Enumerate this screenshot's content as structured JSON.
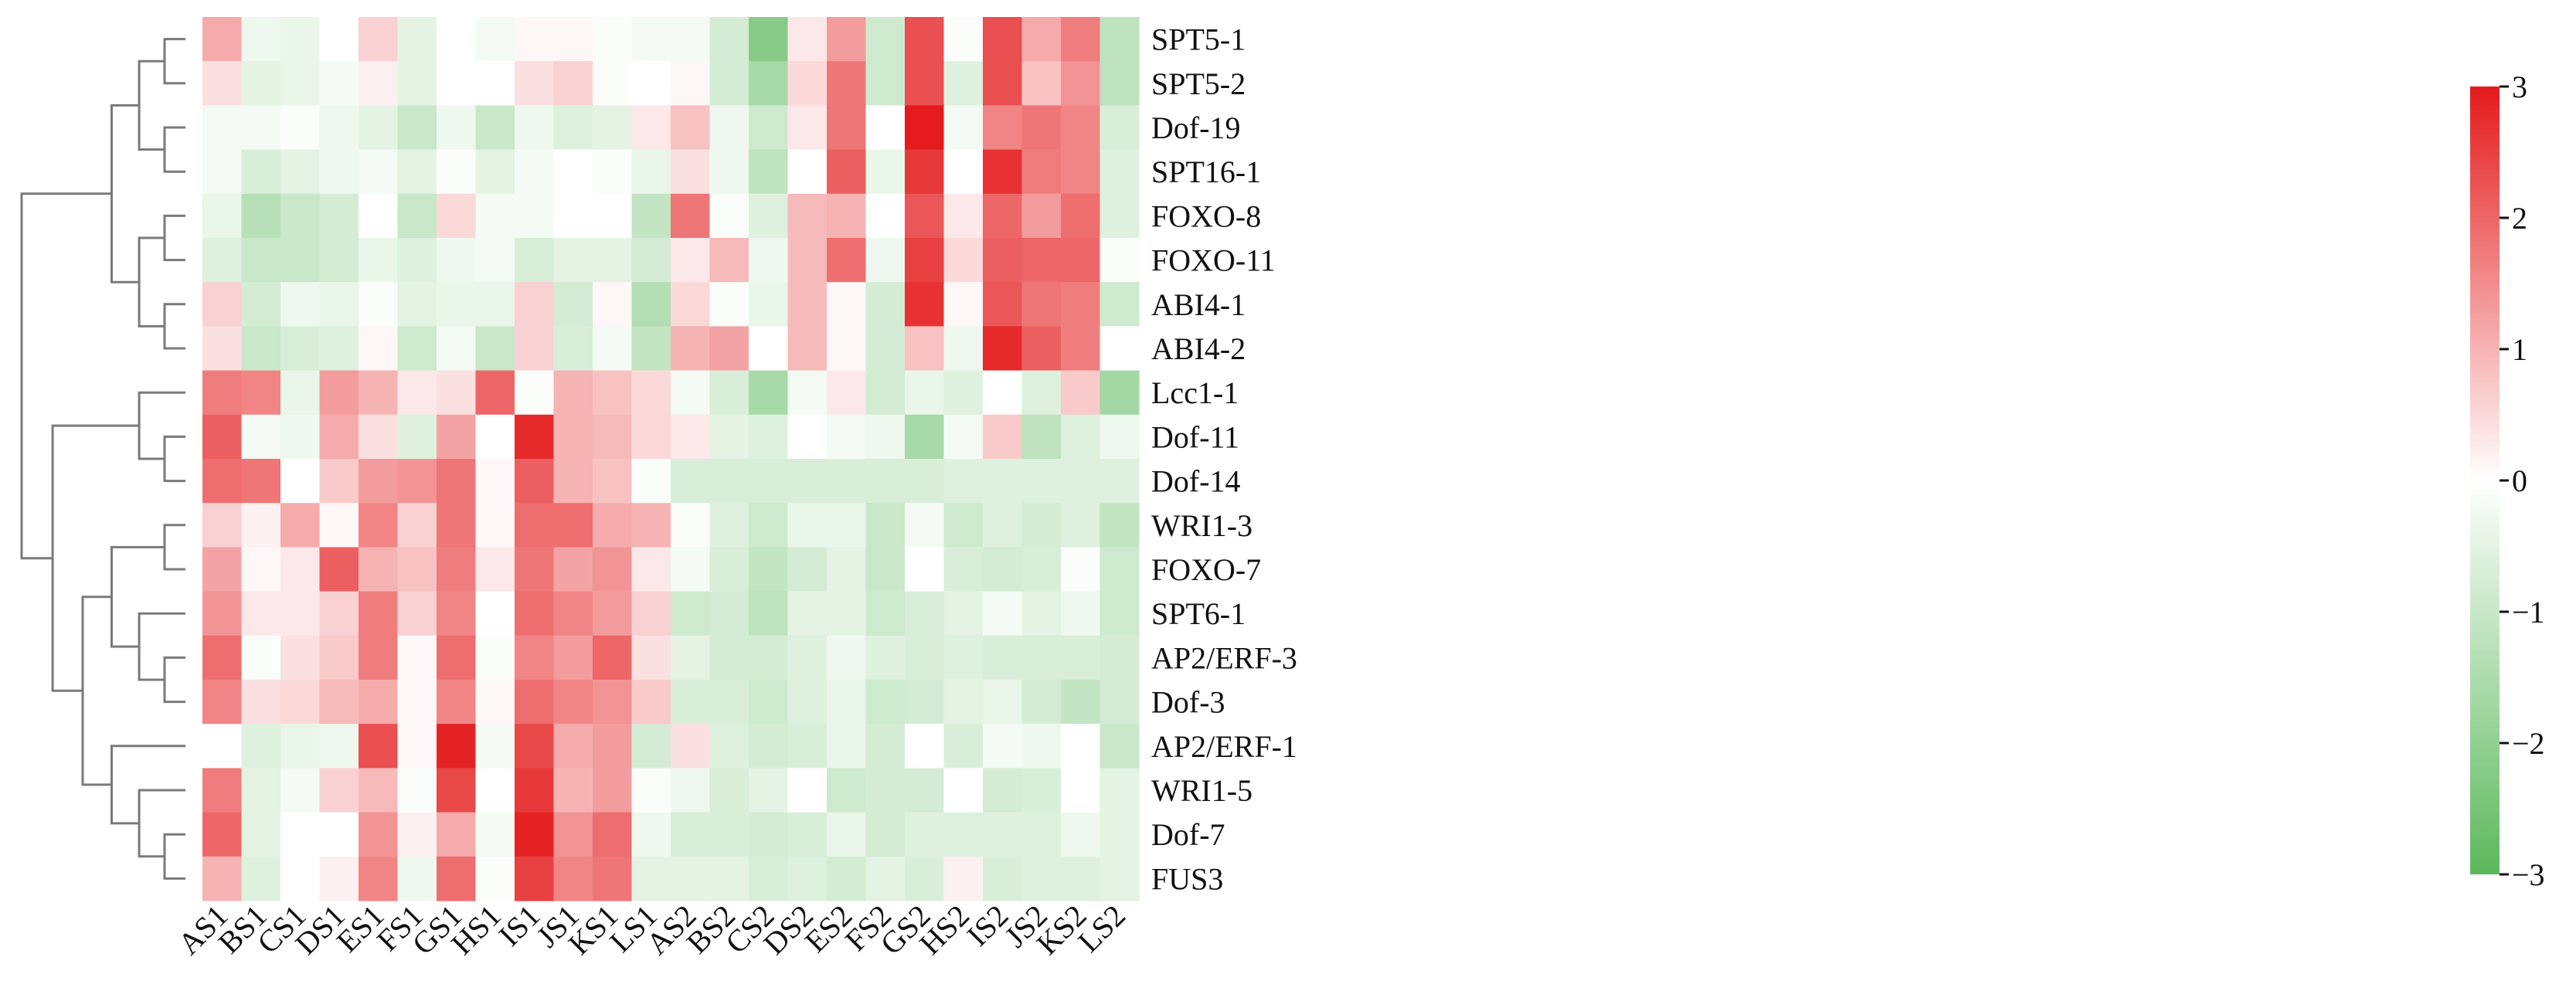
{
  "chart_data": {
    "type": "heatmap",
    "title": "",
    "xlabel": "",
    "ylabel": "",
    "columns": [
      "AS1",
      "BS1",
      "CS1",
      "DS1",
      "ES1",
      "FS1",
      "GS1",
      "HS1",
      "IS1",
      "JS1",
      "KS1",
      "LS1",
      "AS2",
      "BS2",
      "CS2",
      "DS2",
      "ES2",
      "FS2",
      "GS2",
      "HS2",
      "IS2",
      "JS2",
      "KS2",
      "LS2"
    ],
    "rows": [
      "SPT5-1",
      "SPT5-2",
      "Dof-19",
      "SPT16-1",
      "FOXO-8",
      "FOXO-11",
      "ABI4-1",
      "ABI4-2",
      "Lcc1-1",
      "Dof-11",
      "Dof-14",
      "WRI1-3",
      "FOXO-7",
      "SPT6-1",
      "AP2/ERF-3",
      "Dof-3",
      "AP2/ERF-1",
      "WRI1-5",
      "Dof-7",
      "FUS3"
    ],
    "values": [
      [
        1.1,
        -0.3,
        -0.4,
        0.0,
        0.6,
        -0.5,
        0.0,
        -0.2,
        0.1,
        0.1,
        -0.1,
        -0.2,
        -0.2,
        -0.8,
        -2.2,
        0.3,
        1.3,
        -0.9,
        2.3,
        -0.1,
        2.3,
        1.1,
        1.7,
        -1.2
      ],
      [
        0.4,
        -0.5,
        -0.4,
        -0.2,
        0.2,
        -0.5,
        0.0,
        0.0,
        0.4,
        0.6,
        -0.1,
        0.0,
        0.1,
        -0.8,
        -1.6,
        0.5,
        1.8,
        -0.9,
        2.3,
        -0.6,
        2.3,
        0.8,
        1.4,
        -1.2
      ],
      [
        -0.2,
        -0.2,
        -0.1,
        -0.3,
        -0.5,
        -1.0,
        -0.3,
        -1.0,
        -0.3,
        -0.6,
        -0.5,
        0.3,
        0.8,
        -0.3,
        -0.9,
        0.3,
        1.8,
        0.0,
        3.0,
        -0.2,
        1.6,
        1.8,
        1.6,
        -0.7
      ],
      [
        -0.2,
        -0.7,
        -0.5,
        -0.3,
        -0.2,
        -0.5,
        -0.1,
        -0.5,
        -0.2,
        0.0,
        -0.1,
        -0.4,
        0.4,
        -0.3,
        -1.2,
        0.0,
        2.1,
        -0.4,
        2.6,
        0.0,
        2.7,
        1.7,
        1.6,
        -0.6
      ],
      [
        -0.4,
        -1.3,
        -1.0,
        -0.8,
        0.0,
        -1.0,
        0.5,
        -0.2,
        -0.2,
        0.0,
        0.0,
        -1.1,
        1.8,
        -0.1,
        -0.6,
        0.9,
        1.0,
        0.0,
        2.2,
        0.3,
        2.0,
        1.3,
        1.9,
        -0.6
      ],
      [
        -0.6,
        -1.0,
        -1.0,
        -0.8,
        -0.4,
        -0.6,
        -0.3,
        -0.2,
        -0.7,
        -0.5,
        -0.5,
        -0.8,
        0.3,
        0.9,
        -0.3,
        0.9,
        1.9,
        -0.3,
        2.5,
        0.5,
        2.1,
        2.0,
        2.0,
        -0.1
      ],
      [
        0.6,
        -0.8,
        -0.3,
        -0.4,
        -0.1,
        -0.5,
        -0.4,
        -0.4,
        0.6,
        -0.8,
        0.1,
        -1.4,
        0.5,
        -0.1,
        -0.4,
        0.9,
        0.1,
        -0.8,
        2.7,
        0.1,
        2.2,
        1.8,
        1.7,
        -0.9
      ],
      [
        0.4,
        -1.0,
        -0.7,
        -0.6,
        0.1,
        -0.9,
        -0.2,
        -1.0,
        0.6,
        -0.7,
        -0.2,
        -1.1,
        1.0,
        1.2,
        0.0,
        0.9,
        0.1,
        -0.8,
        0.8,
        -0.3,
        2.8,
        2.1,
        1.7,
        0.0
      ],
      [
        1.7,
        1.6,
        -0.4,
        1.3,
        1.0,
        0.3,
        0.4,
        2.0,
        -0.1,
        1.0,
        0.8,
        0.5,
        -0.2,
        -0.7,
        -1.6,
        -0.2,
        0.3,
        -0.8,
        -0.4,
        -0.6,
        0.0,
        -0.6,
        0.7,
        -1.7
      ],
      [
        2.1,
        -0.2,
        -0.3,
        1.1,
        0.4,
        -0.6,
        1.2,
        0.0,
        2.8,
        1.0,
        0.9,
        0.5,
        0.3,
        -0.5,
        -0.6,
        0.0,
        -0.2,
        -0.3,
        -1.6,
        -0.2,
        0.7,
        -1.2,
        -0.6,
        -0.3
      ],
      [
        1.9,
        1.8,
        0.0,
        0.7,
        1.3,
        1.4,
        1.8,
        0.1,
        2.1,
        1.0,
        0.8,
        -0.1,
        -0.7,
        -0.7,
        -0.7,
        -0.7,
        -0.7,
        -0.7,
        -0.7,
        -0.6,
        -0.6,
        -0.6,
        -0.6,
        -0.6
      ],
      [
        0.6,
        0.2,
        1.1,
        0.1,
        1.6,
        0.6,
        1.8,
        0.1,
        1.9,
        1.9,
        1.1,
        1.0,
        -0.1,
        -0.6,
        -0.9,
        -0.4,
        -0.4,
        -1.0,
        -0.2,
        -0.9,
        -0.6,
        -0.8,
        -0.6,
        -1.1
      ],
      [
        1.2,
        0.1,
        0.3,
        2.1,
        1.0,
        0.8,
        1.7,
        0.3,
        1.8,
        1.2,
        1.4,
        0.3,
        -0.2,
        -0.7,
        -1.1,
        -0.8,
        -0.5,
        -1.0,
        0.0,
        -0.7,
        -0.8,
        -0.7,
        -0.1,
        -0.9
      ],
      [
        1.4,
        0.3,
        0.3,
        0.6,
        1.7,
        0.6,
        1.6,
        0.0,
        1.9,
        1.6,
        1.3,
        0.6,
        -0.9,
        -0.8,
        -1.2,
        -0.5,
        -0.5,
        -0.9,
        -0.7,
        -0.5,
        -0.2,
        -0.5,
        -0.3,
        -0.9
      ],
      [
        1.9,
        -0.1,
        0.4,
        0.7,
        1.7,
        0.1,
        1.9,
        -0.1,
        1.6,
        1.3,
        2.0,
        0.4,
        -0.5,
        -0.8,
        -0.8,
        -0.6,
        -0.3,
        -0.6,
        -0.7,
        -0.6,
        -0.7,
        -0.7,
        -0.7,
        -0.8
      ],
      [
        1.6,
        0.4,
        0.5,
        0.9,
        1.1,
        0.1,
        1.6,
        0.1,
        1.9,
        1.6,
        1.4,
        0.7,
        -0.7,
        -0.7,
        -0.9,
        -0.6,
        -0.4,
        -0.9,
        -0.8,
        -0.5,
        -0.4,
        -0.8,
        -1.1,
        -0.8
      ],
      [
        0.0,
        -0.6,
        -0.4,
        -0.3,
        2.3,
        0.1,
        2.9,
        -0.2,
        2.4,
        1.1,
        1.3,
        -0.8,
        0.4,
        -0.6,
        -0.8,
        -0.7,
        -0.4,
        -0.8,
        0.0,
        -0.7,
        -0.2,
        -0.3,
        0.0,
        -1.0
      ],
      [
        1.7,
        -0.5,
        -0.2,
        0.6,
        0.9,
        -0.1,
        2.4,
        0.0,
        2.6,
        1.0,
        1.3,
        -0.1,
        -0.3,
        -0.7,
        -0.5,
        0.0,
        -0.9,
        -0.8,
        -0.8,
        0.0,
        -0.8,
        -0.7,
        0.0,
        -0.5
      ],
      [
        2.0,
        -0.5,
        0.0,
        0.0,
        1.4,
        0.2,
        1.1,
        -0.2,
        2.9,
        1.4,
        1.9,
        -0.3,
        -0.7,
        -0.7,
        -0.8,
        -0.7,
        -0.4,
        -0.8,
        -0.6,
        -0.6,
        -0.6,
        -0.6,
        -0.3,
        -0.5
      ],
      [
        1.0,
        -0.6,
        0.0,
        0.2,
        1.6,
        -0.3,
        1.9,
        -0.1,
        2.5,
        1.6,
        1.8,
        -0.5,
        -0.5,
        -0.5,
        -0.7,
        -0.6,
        -0.8,
        -0.5,
        -0.7,
        0.2,
        -0.7,
        -0.6,
        -0.6,
        -0.5
      ]
    ],
    "color_scale": {
      "min": -3,
      "max": 3,
      "low_color": "#5cb85c",
      "mid_color": "#ffffff",
      "high_color": "#e41a1c",
      "ticks": [
        3,
        2,
        1,
        0,
        -1,
        -2,
        -3
      ],
      "tick_labels": [
        "3",
        "2",
        "1",
        "0",
        "−1",
        "−2",
        "−3"
      ]
    },
    "row_dendrogram": true,
    "grid": false,
    "legend_position": "right"
  }
}
